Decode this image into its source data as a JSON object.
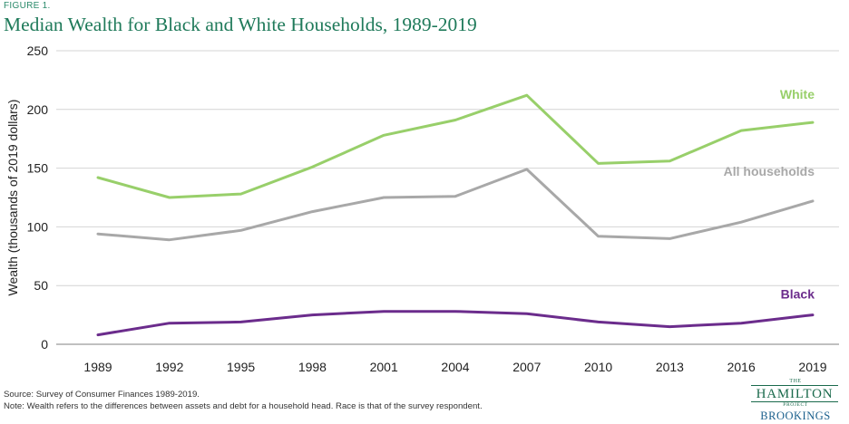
{
  "figure_label": "FIGURE 1.",
  "chart_data": {
    "type": "line",
    "title": "Median Wealth for Black and White Households, 1989-2019",
    "xlabel": "",
    "ylabel": "Wealth  (thousands of 2019 dollars)",
    "x": [
      "1989",
      "1992",
      "1995",
      "1998",
      "2001",
      "2004",
      "2007",
      "2010",
      "2013",
      "2016",
      "2019"
    ],
    "ylim": [
      0,
      250
    ],
    "yticks": [
      "0",
      "50",
      "100",
      "150",
      "200",
      "250"
    ],
    "grid": "horizontal",
    "series": [
      {
        "name": "White",
        "color": "#98cf6a",
        "values": [
          142,
          125,
          128,
          151,
          178,
          191,
          212,
          154,
          156,
          182,
          189
        ]
      },
      {
        "name": "All households",
        "color": "#a8a8a8",
        "values": [
          94,
          89,
          97,
          113,
          125,
          126,
          149,
          92,
          90,
          104,
          122
        ]
      },
      {
        "name": "Black",
        "color": "#6b2c8c",
        "values": [
          8,
          18,
          19,
          25,
          28,
          28,
          26,
          19,
          15,
          18,
          25
        ]
      }
    ]
  },
  "footer": {
    "source": "Source: Survey of Consumer Finances 1989-2019.",
    "note": "Note: Wealth refers to the differences between assets and debt for a household head. Race is that of the survey respondent."
  },
  "logo": {
    "the": "THE",
    "hamilton": "HAMILTON",
    "project": "PROJECT",
    "brookings": "BROOKINGS"
  }
}
